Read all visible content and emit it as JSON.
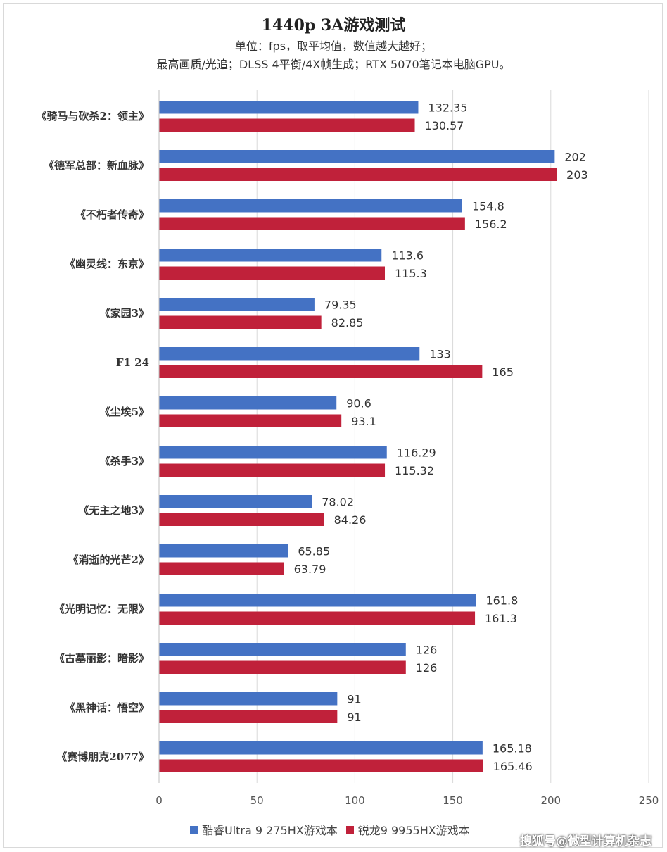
{
  "chart_data": {
    "type": "bar",
    "orientation": "horizontal",
    "title": "1440p 3A游戏测试",
    "subtitle_lines": [
      "单位：fps，取平均值，数值越大越好；",
      "最高画质/光追；DLSS 4平衡/4X帧生成；RTX 5070笔记本电脑GPU。"
    ],
    "categories": [
      "《骑马与砍杀2：领主》",
      "《德军总部：新血脉》",
      "《不朽者传奇》",
      "《幽灵线：东京》",
      "《家园3》",
      "F1 24",
      "《尘埃5》",
      "《杀手3》",
      "《无主之地3》",
      "《消逝的光芒2》",
      "《光明记忆：无限》",
      "《古墓丽影：暗影》",
      "《黑神话：悟空》",
      "《赛博朋克2077》"
    ],
    "series": [
      {
        "name": "酷睿Ultra 9 275HX游戏本",
        "color": "#4472C4",
        "values": [
          132.35,
          202,
          154.8,
          113.6,
          79.35,
          133,
          90.6,
          116.29,
          78.02,
          65.85,
          161.8,
          126,
          91,
          165.18
        ]
      },
      {
        "name": "锐龙9 9955HX游戏本",
        "color": "#C0213A",
        "values": [
          130.57,
          203,
          156.2,
          115.3,
          82.85,
          165,
          93.1,
          115.32,
          84.26,
          63.79,
          161.3,
          126,
          91,
          165.46
        ]
      }
    ],
    "xlim": [
      0,
      250
    ],
    "xticks": [
      0,
      50,
      100,
      150,
      200,
      250
    ],
    "grid": true,
    "legend_position": "bottom"
  },
  "watermark": "搜狐号@微型计算机杂志"
}
